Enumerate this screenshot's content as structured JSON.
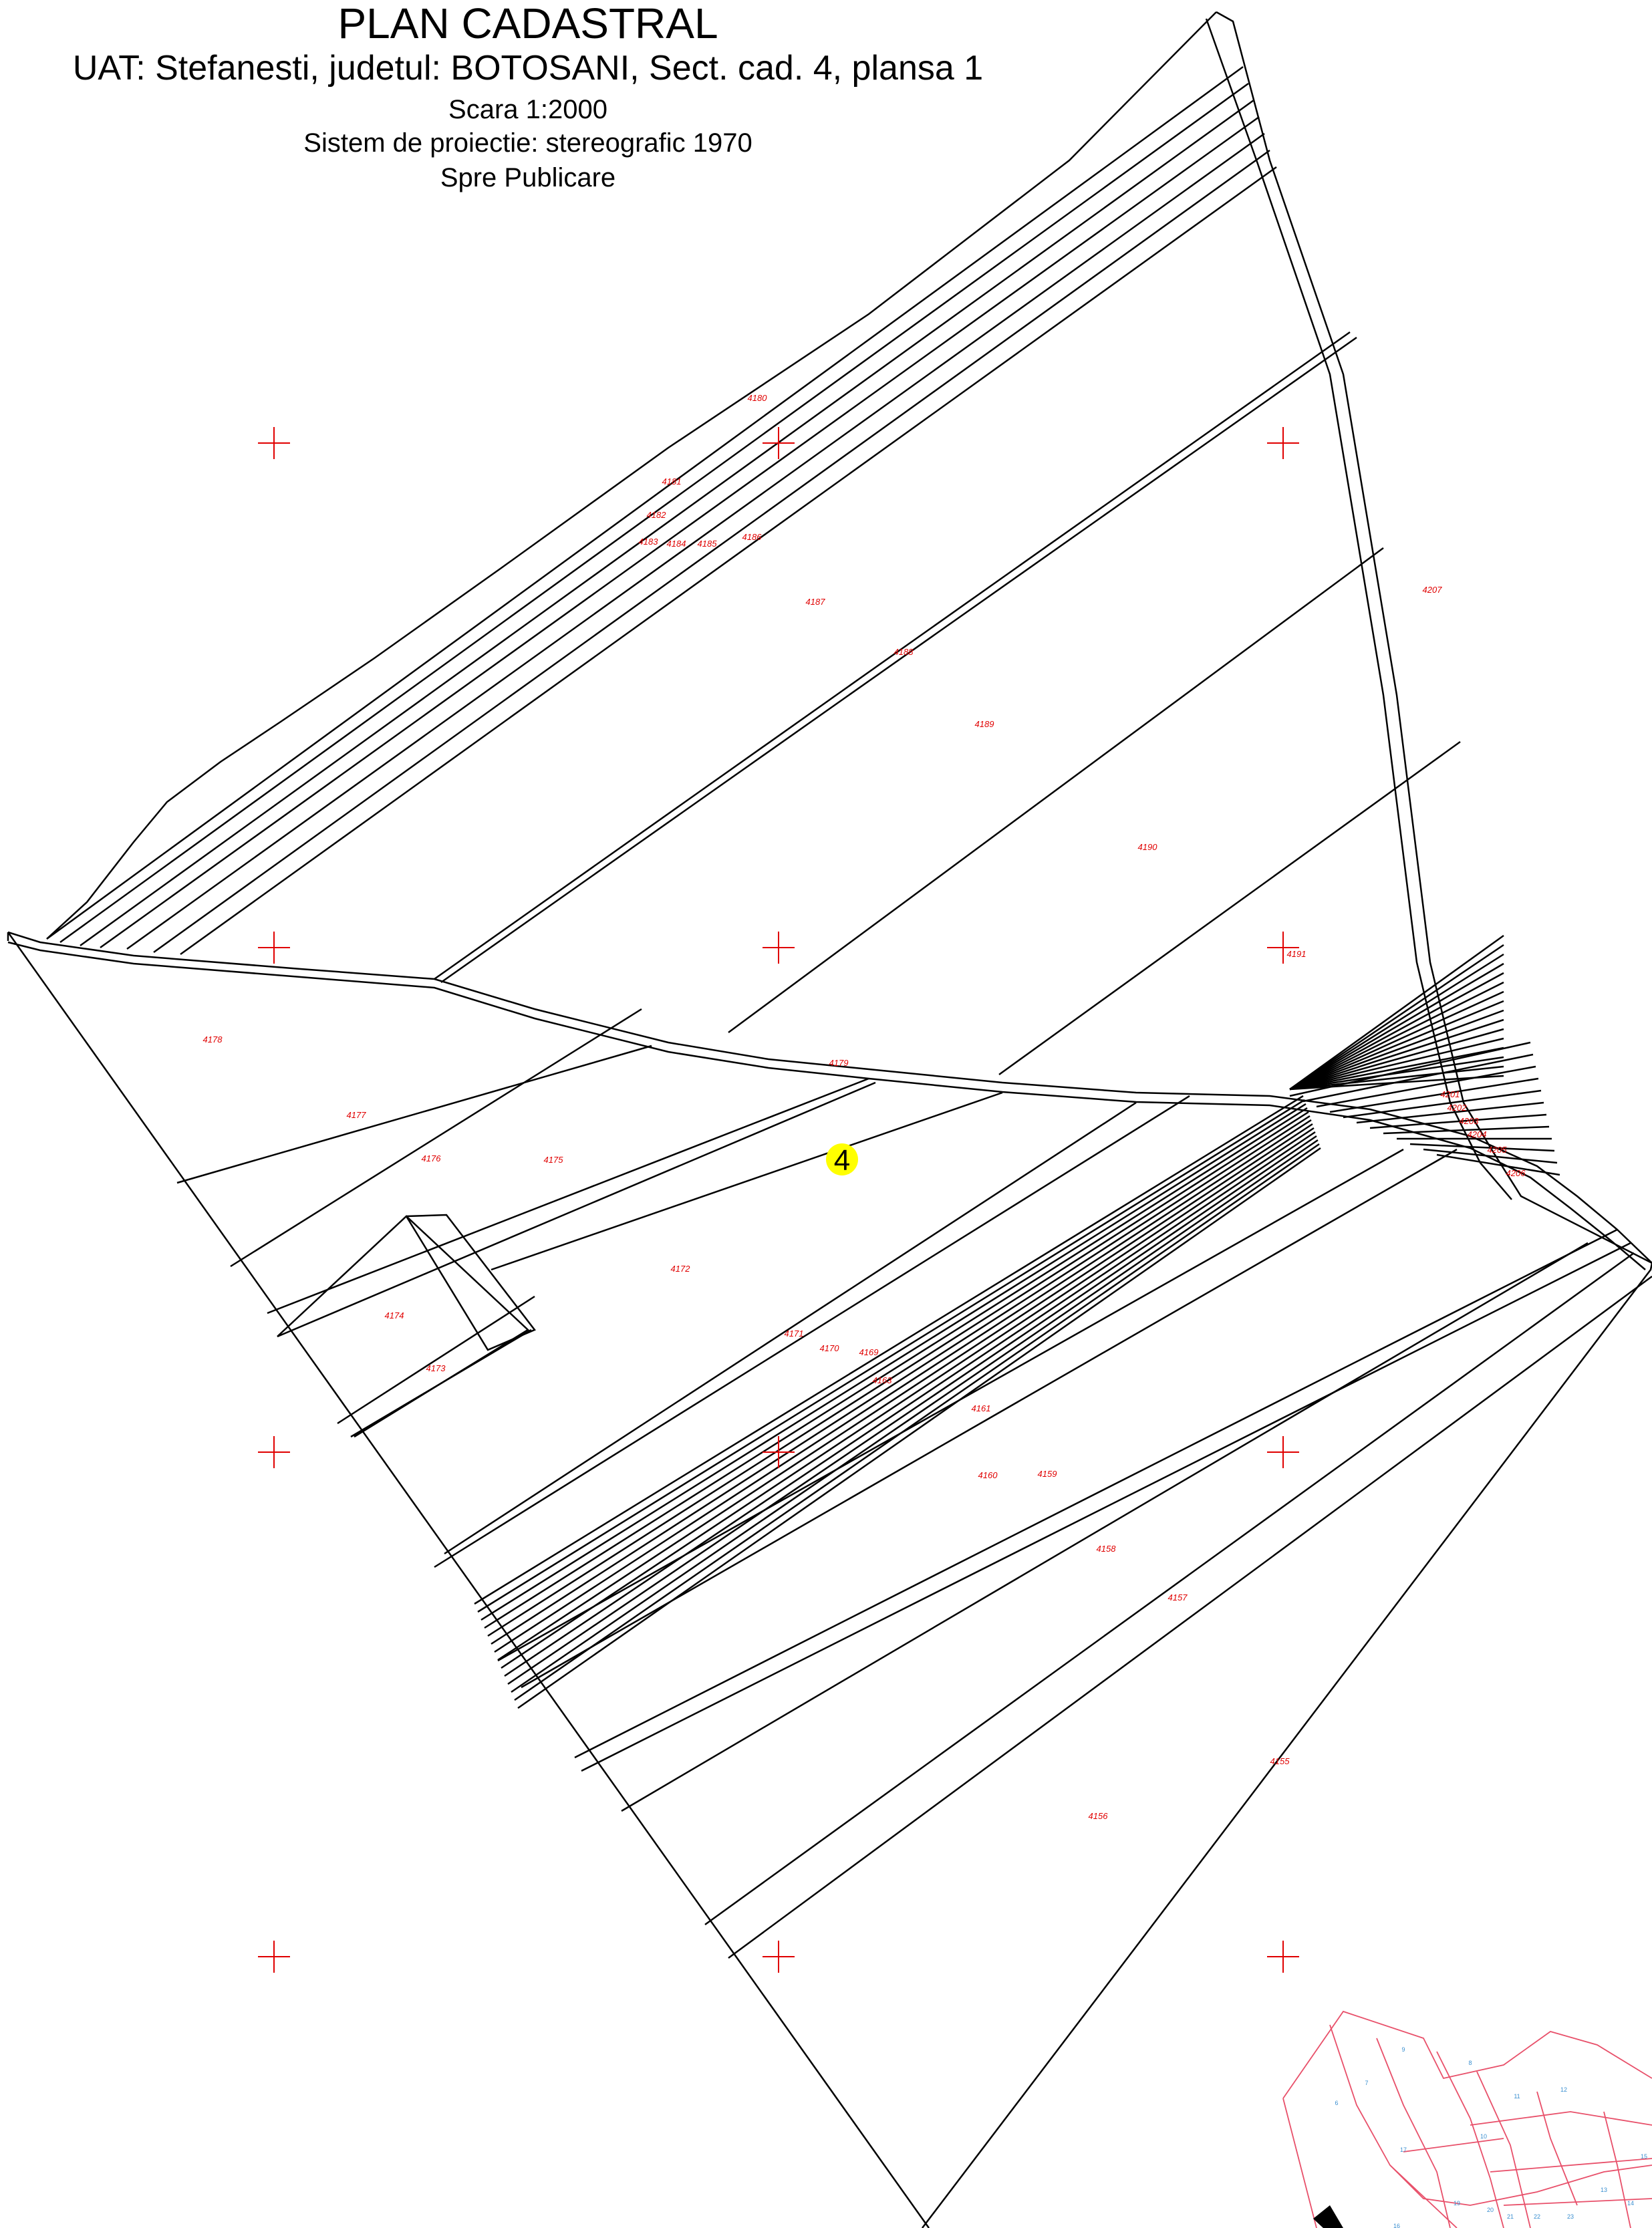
{
  "header": {
    "title": "PLAN CADASTRAL",
    "subtitle": "UAT: Stefanesti, judetul: BOTOSANI, Sect. cad. 4, plansa 1",
    "scale": "Scara 1:2000",
    "projection": "Sistem de proiectie: stereografic 1970",
    "status": "Spre Publicare"
  },
  "section_number": "4",
  "parcels": [
    "4180",
    "4181",
    "4182",
    "4183",
    "4184",
    "4185",
    "4186",
    "4187",
    "4188",
    "4189",
    "4190",
    "4191",
    "4207",
    "4178",
    "4177",
    "4176",
    "4175",
    "4179",
    "4172",
    "4174",
    "4173",
    "4171",
    "4170",
    "4169",
    "4163",
    "4161",
    "4160",
    "4159",
    "4158",
    "4157",
    "4155",
    "4156",
    "4201",
    "4202",
    "4203",
    "4204",
    "4205",
    "4206"
  ],
  "overview_map": {
    "numbers": [
      "9",
      "8",
      "7",
      "6",
      "11",
      "12",
      "10",
      "17",
      "16",
      "19",
      "20",
      "21",
      "22",
      "23",
      "13",
      "14",
      "15"
    ]
  },
  "colors": {
    "parcel_lines": "#000000",
    "labels": "#e00000",
    "grid_cross": "#e00000",
    "section_marker": "#ffff00",
    "overview_lines": "#e8506a"
  }
}
